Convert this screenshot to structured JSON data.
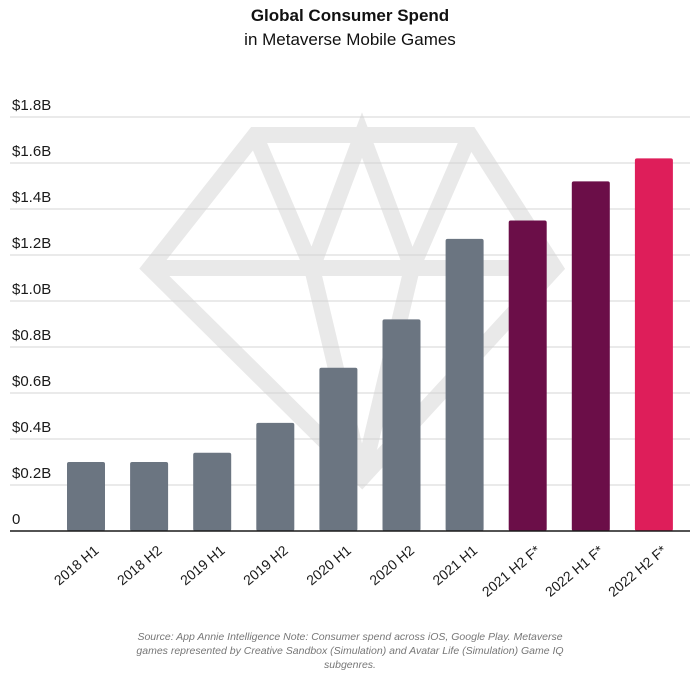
{
  "chart_data": {
    "type": "bar",
    "title": "Global Consumer Spend",
    "subtitle": "in Metaverse Mobile Games",
    "categories": [
      "2018 H1",
      "2018 H2",
      "2019 H1",
      "2019 H2",
      "2020 H1",
      "2020 H2",
      "2021 H1",
      "2021 H2 F*",
      "2022 H1 F*",
      "2022 H2 F*"
    ],
    "values": [
      0.3,
      0.3,
      0.34,
      0.47,
      0.71,
      0.92,
      1.27,
      1.35,
      1.52,
      1.62
    ],
    "colors": [
      "#6b7581",
      "#6b7581",
      "#6b7581",
      "#6b7581",
      "#6b7581",
      "#6b7581",
      "#6b7581",
      "#6b0e48",
      "#6b0e48",
      "#de1e5a"
    ],
    "ylim": [
      0,
      1.8
    ],
    "yticks": [
      0,
      0.2,
      0.4,
      0.6,
      0.8,
      1.0,
      1.2,
      1.4,
      1.6,
      1.8
    ],
    "ytick_labels": [
      "0",
      "$0.2B",
      "$0.4B",
      "$0.6B",
      "$0.8B",
      "$1.0B",
      "$1.2B",
      "$1.4B",
      "$1.6B",
      "$1.8B"
    ],
    "xlabel": "",
    "ylabel": "",
    "grid": true
  },
  "source_note": "Source: App Annie Intelligence Note: Consumer spend across iOS, Google Play. Metaverse games represented by Creative Sandbox (Simulation) and Avatar Life (Simulation) Game IQ subgenres.",
  "watermark_icon": "diamond-icon"
}
